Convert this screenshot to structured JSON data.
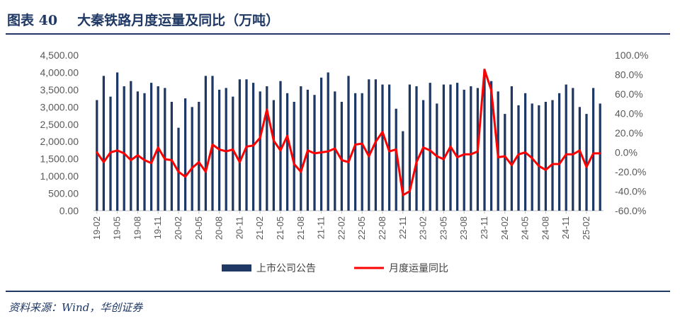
{
  "header": {
    "figure_label": "图表 40",
    "title": "大秦铁路月度运量及同比（万吨）"
  },
  "footer": {
    "source": "资料来源：Wind，华创证券"
  },
  "colors": {
    "bar": "#1f3864",
    "line": "#ff0000",
    "axis": "#bfbfbf",
    "text": "#595959"
  },
  "chart_data": {
    "type": "bar",
    "combo": "bar+line",
    "title": "大秦铁路月度运量及同比（万吨）",
    "x": [
      "19-02",
      "19-03",
      "19-04",
      "19-05",
      "19-06",
      "19-07",
      "19-08",
      "19-09",
      "19-10",
      "19-11",
      "19-12",
      "20-01",
      "20-02",
      "20-03",
      "20-04",
      "20-05",
      "20-06",
      "20-07",
      "20-08",
      "20-09",
      "20-10",
      "20-11",
      "20-12",
      "21-01",
      "21-02",
      "21-03",
      "21-04",
      "21-05",
      "21-06",
      "21-07",
      "21-08",
      "21-09",
      "21-10",
      "21-11",
      "21-12",
      "22-01",
      "22-02",
      "22-03",
      "22-04",
      "22-05",
      "22-06",
      "22-07",
      "22-08",
      "22-09",
      "22-10",
      "22-11",
      "22-12",
      "23-01",
      "23-02",
      "23-03",
      "23-04",
      "23-05",
      "23-06",
      "23-07",
      "23-08",
      "23-09",
      "23-10",
      "23-11",
      "23-12",
      "24-01",
      "24-02",
      "24-03",
      "24-04",
      "24-05",
      "24-06",
      "24-07",
      "24-08",
      "24-09",
      "24-10",
      "24-11",
      "24-12",
      "25-01",
      "25-02",
      "25-03",
      "25-04"
    ],
    "x_tick_labels": [
      "19-02",
      "19-05",
      "19-08",
      "19-11",
      "20-02",
      "20-05",
      "20-08",
      "20-11",
      "21-02",
      "21-05",
      "21-08",
      "21-11",
      "22-02",
      "22-05",
      "22-08",
      "22-11",
      "23-02",
      "23-05",
      "23-08",
      "23-11",
      "24-02",
      "24-05",
      "24-08",
      "24-11",
      "25-02"
    ],
    "series": [
      {
        "name": "上市公司公告",
        "type": "bar",
        "axis": "left",
        "values": [
          3200,
          3900,
          3300,
          4000,
          3600,
          3750,
          3450,
          3400,
          3700,
          3600,
          3550,
          3150,
          2400,
          3250,
          3000,
          3150,
          3900,
          3900,
          3500,
          3550,
          3300,
          3800,
          3800,
          3700,
          3450,
          3600,
          3200,
          3750,
          3400,
          3150,
          3600,
          3500,
          3350,
          3850,
          4000,
          3450,
          3150,
          3900,
          3400,
          3400,
          3800,
          3800,
          3650,
          3650,
          2950,
          2300,
          3650,
          3600,
          3200,
          3700,
          3100,
          3650,
          3650,
          3700,
          3500,
          3600,
          3550,
          4100,
          3750,
          3450,
          2800,
          3600,
          3050,
          3400,
          3100,
          3050,
          3150,
          3200,
          3400,
          3650,
          3550,
          3000,
          2800,
          3550,
          3100
        ]
      },
      {
        "name": "月度运量同比",
        "type": "line",
        "axis": "right",
        "values": [
          0,
          -10,
          0,
          2,
          -1,
          -8,
          -3,
          -8,
          -11,
          5,
          -7,
          -8,
          -20,
          -25,
          -16,
          -10,
          -20,
          8,
          3,
          1,
          3,
          -10,
          6,
          7,
          15,
          44,
          12,
          2,
          17,
          -12,
          -20,
          2,
          -1,
          0,
          1,
          4,
          -8,
          -10,
          8,
          9,
          -4,
          11,
          21,
          1,
          3,
          -44,
          -40,
          -10,
          5,
          2,
          -4,
          -7,
          6,
          -5,
          -2,
          -2,
          1,
          85,
          64,
          -5,
          -4,
          -13,
          -2,
          0,
          -6,
          -14,
          -18,
          -12,
          -12,
          -2,
          -2,
          2,
          -15,
          -1,
          -1
        ]
      }
    ],
    "left_axis": {
      "min": 0,
      "max": 4500,
      "step": 500,
      "tick_labels": [
        "0.00",
        "500.00",
        "1,000.00",
        "1,500.00",
        "2,000.00",
        "2,500.00",
        "3,000.00",
        "3,500.00",
        "4,000.00",
        "4,500.00"
      ]
    },
    "right_axis": {
      "min": -60,
      "max": 100,
      "step": 20,
      "tick_labels": [
        "-60.0%",
        "-40.0%",
        "-20.0%",
        "0.0%",
        "20.0%",
        "40.0%",
        "60.0%",
        "80.0%",
        "100.0%"
      ]
    },
    "grid": false,
    "legend_position": "bottom"
  }
}
